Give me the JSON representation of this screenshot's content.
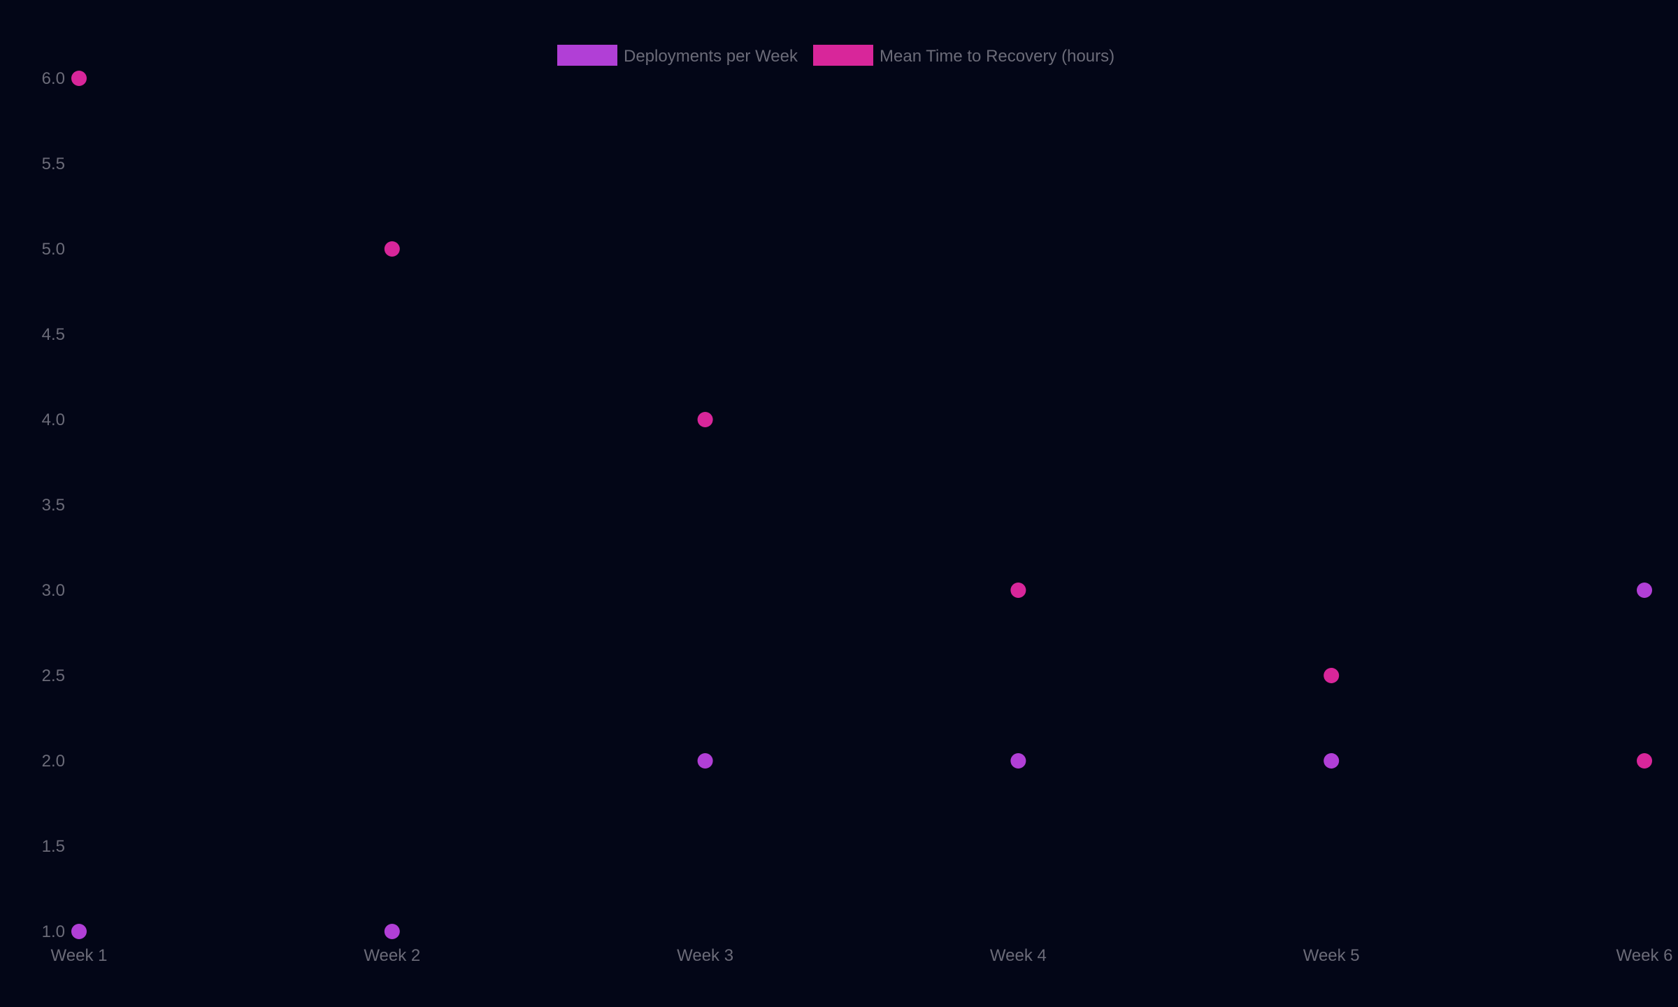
{
  "chart_data": {
    "type": "scatter",
    "title": "",
    "xlabel": "",
    "ylabel": "",
    "categories": [
      "Week 1",
      "Week 2",
      "Week 3",
      "Week 4",
      "Week 5",
      "Week 6"
    ],
    "ylim": [
      1.0,
      6.0
    ],
    "yticks": [
      "1.0",
      "1.5",
      "2.0",
      "2.5",
      "3.0",
      "3.5",
      "4.0",
      "4.5",
      "5.0",
      "5.5",
      "6.0"
    ],
    "grid": false,
    "legend_position": "top-center",
    "series": [
      {
        "name": "Deployments per Week",
        "color": "#b13fd6",
        "values": [
          1,
          1,
          2,
          2,
          2,
          3
        ]
      },
      {
        "name": "Mean Time to Recovery (hours)",
        "color": "#d8269a",
        "values": [
          6,
          5,
          4,
          3,
          2.5,
          2
        ]
      }
    ]
  },
  "colors": {
    "background": "#030617",
    "text": "#6b6b78"
  }
}
